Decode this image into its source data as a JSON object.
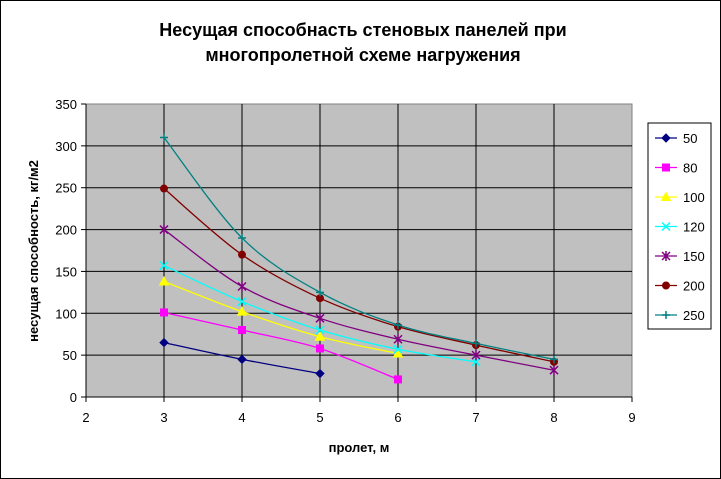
{
  "chart_data": {
    "type": "line",
    "title_lines": [
      "Несущая способнасть стеновых панелей при",
      "многопролетной схеме нагружения"
    ],
    "xlabel": "пролет, м",
    "ylabel": "несущая способность, кг/м2",
    "xlim": [
      2,
      9
    ],
    "ylim": [
      0,
      350
    ],
    "xticks": [
      "2",
      "3",
      "4",
      "5",
      "6",
      "7",
      "8",
      "9"
    ],
    "yticks": [
      "0",
      "50",
      "100",
      "150",
      "200",
      "250",
      "300",
      "350"
    ],
    "grid": true,
    "plot_background": "#c0c0c0",
    "legend_position": "right",
    "series": [
      {
        "name": "50",
        "color": "#000080",
        "marker": "diamond",
        "x": [
          3,
          4,
          5
        ],
        "y": [
          65,
          45,
          28
        ]
      },
      {
        "name": "80",
        "color": "#ff00ff",
        "marker": "square",
        "x": [
          3,
          4,
          5,
          6
        ],
        "y": [
          101,
          80,
          58,
          21
        ]
      },
      {
        "name": "100",
        "color": "#ffff00",
        "marker": "triangle",
        "x": [
          3,
          4,
          5,
          6
        ],
        "y": [
          138,
          102,
          72,
          52
        ]
      },
      {
        "name": "120",
        "color": "#00ffff",
        "marker": "x",
        "x": [
          3,
          4,
          5,
          6,
          7
        ],
        "y": [
          157,
          114,
          80,
          57,
          42
        ]
      },
      {
        "name": "150",
        "color": "#800080",
        "marker": "star",
        "x": [
          3,
          4,
          5,
          6,
          7,
          8
        ],
        "y": [
          200,
          132,
          94,
          69,
          50,
          32
        ]
      },
      {
        "name": "200",
        "color": "#800000",
        "marker": "circle",
        "x": [
          3,
          4,
          5,
          6,
          7,
          8
        ],
        "y": [
          249,
          170,
          118,
          84,
          62,
          42
        ]
      },
      {
        "name": "250",
        "color": "#008080",
        "marker": "plus",
        "x": [
          3,
          4,
          5,
          6,
          7,
          8
        ],
        "y": [
          310,
          190,
          125,
          86,
          64,
          45
        ]
      }
    ]
  }
}
